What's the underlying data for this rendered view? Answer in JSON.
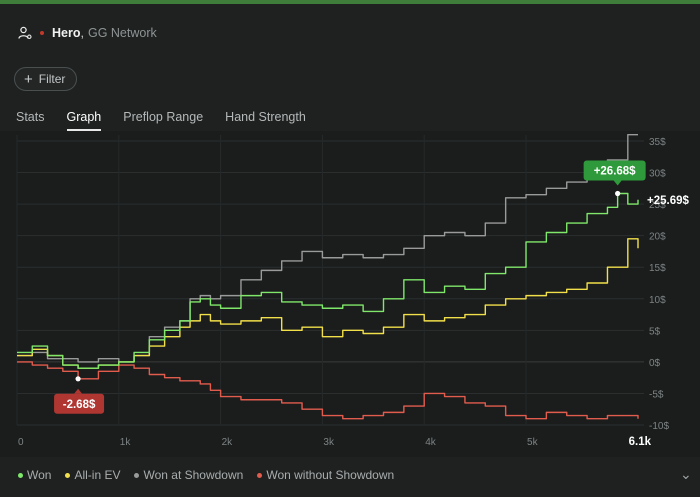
{
  "player": {
    "name": "Hero",
    "network": "GG Network",
    "separator": ","
  },
  "filter": {
    "label": "Filter"
  },
  "tabs": [
    {
      "label": "Stats",
      "active": false
    },
    {
      "label": "Graph",
      "active": true
    },
    {
      "label": "Preflop Range",
      "active": false
    },
    {
      "label": "Hand Strength",
      "active": false
    }
  ],
  "colors": {
    "won": "#7fe86a",
    "allin": "#f2e04a",
    "showdown": "#9a9a9a",
    "nonshowdown": "#e25c4e",
    "tooltip_green": "#2f9a3b",
    "tooltip_red": "#b03632"
  },
  "chart_data": {
    "type": "line",
    "x_ticks": [
      "0",
      "1k",
      "2k",
      "3k",
      "4k",
      "5k"
    ],
    "x_end_label": "6.1k",
    "xlim": [
      0,
      6100
    ],
    "ylim": [
      -10,
      35
    ],
    "y_ticks": [
      "35$",
      "30$",
      "25$",
      "20$",
      "15$",
      "10$",
      "5$",
      "0$",
      "-5$",
      "-10$"
    ],
    "series": [
      {
        "name": "Won",
        "color": "#7fe86a",
        "x": [
          0,
          150,
          300,
          450,
          600,
          800,
          1000,
          1150,
          1300,
          1450,
          1600,
          1700,
          1800,
          1900,
          2000,
          2200,
          2400,
          2600,
          2800,
          3000,
          3200,
          3400,
          3600,
          3800,
          4000,
          4200,
          4400,
          4600,
          4800,
          5000,
          5200,
          5400,
          5600,
          5800,
          5900,
          6000,
          6100
        ],
        "y": [
          1.5,
          2.5,
          1.0,
          -0.5,
          -1.0,
          -0.5,
          0.0,
          1.5,
          3.5,
          5.0,
          6.5,
          9.5,
          10.0,
          9.0,
          8.5,
          10.5,
          11.0,
          9.5,
          9.0,
          8.5,
          9.0,
          8.0,
          10.0,
          13.0,
          11.0,
          12.0,
          11.5,
          14.0,
          15.0,
          19.0,
          20.5,
          22.0,
          23.5,
          24.5,
          26.68,
          25.0,
          25.69
        ]
      },
      {
        "name": "All-in EV",
        "color": "#f2e04a",
        "x": [
          0,
          150,
          300,
          450,
          600,
          800,
          1000,
          1150,
          1300,
          1450,
          1600,
          1700,
          1800,
          1900,
          2000,
          2200,
          2400,
          2600,
          2800,
          3000,
          3200,
          3400,
          3600,
          3800,
          4000,
          4200,
          4400,
          4600,
          4800,
          5000,
          5200,
          5400,
          5600,
          5800,
          6000,
          6100
        ],
        "y": [
          1.0,
          2.0,
          1.0,
          -0.5,
          -1.0,
          -0.5,
          0.0,
          1.0,
          2.5,
          4.0,
          5.5,
          6.5,
          7.5,
          6.5,
          6.0,
          6.5,
          7.0,
          5.0,
          5.5,
          4.0,
          5.0,
          4.5,
          5.5,
          7.5,
          6.5,
          7.0,
          7.5,
          9.0,
          10.0,
          10.5,
          11.0,
          11.5,
          12.5,
          15.0,
          19.5,
          18.0
        ]
      },
      {
        "name": "Won at Showdown",
        "color": "#9a9a9a",
        "x": [
          0,
          150,
          300,
          450,
          600,
          800,
          1000,
          1150,
          1300,
          1450,
          1600,
          1700,
          1800,
          1900,
          2000,
          2200,
          2400,
          2600,
          2800,
          3000,
          3200,
          3400,
          3600,
          3800,
          4000,
          4200,
          4400,
          4600,
          4800,
          5000,
          5200,
          5400,
          5600,
          5800,
          6000,
          6100
        ],
        "y": [
          1.0,
          1.5,
          0.5,
          0.5,
          0.0,
          0.5,
          0.0,
          1.0,
          4.0,
          5.5,
          6.5,
          10.0,
          10.5,
          10.0,
          10.5,
          13.0,
          14.5,
          16.0,
          17.5,
          16.5,
          17.0,
          16.5,
          17.0,
          18.0,
          20.0,
          20.5,
          20.0,
          22.0,
          26.0,
          26.5,
          27.5,
          28.5,
          29.0,
          32.0,
          36.0,
          36.0
        ]
      },
      {
        "name": "Won without Showdown",
        "color": "#e25c4e",
        "x": [
          0,
          150,
          300,
          450,
          600,
          800,
          1000,
          1150,
          1300,
          1450,
          1600,
          1700,
          1800,
          1900,
          2000,
          2200,
          2400,
          2600,
          2800,
          3000,
          3200,
          3400,
          3600,
          3800,
          4000,
          4200,
          4400,
          4600,
          4800,
          5000,
          5200,
          5400,
          5600,
          5800,
          6000,
          6100
        ],
        "y": [
          0.0,
          -0.5,
          -1.0,
          -1.5,
          -2.68,
          -1.5,
          -0.5,
          -1.0,
          -2.0,
          -2.5,
          -3.0,
          -3.0,
          -3.5,
          -4.5,
          -5.5,
          -6.0,
          -6.0,
          -6.5,
          -7.5,
          -8.5,
          -9.0,
          -8.5,
          -8.0,
          -7.0,
          -5.0,
          -5.5,
          -6.5,
          -7.0,
          -8.5,
          -9.0,
          -8.0,
          -8.5,
          -9.0,
          -8.5,
          -8.5,
          -9.0
        ]
      }
    ],
    "annotations": [
      {
        "series": "Won",
        "x": 5900,
        "y": 26.68,
        "label": "+26.68$",
        "style": "green-box"
      },
      {
        "series": "Won",
        "x": 6100,
        "y": 25.69,
        "label": "+25.69$",
        "style": "end-label"
      },
      {
        "series": "Won without Showdown",
        "x": 600,
        "y": -2.68,
        "label": "-2.68$",
        "style": "red-box"
      }
    ]
  },
  "legend": [
    {
      "label": "Won",
      "color": "#7fe86a"
    },
    {
      "label": "All-in EV",
      "color": "#f2e04a"
    },
    {
      "label": "Won at Showdown",
      "color": "#9a9a9a"
    },
    {
      "label": "Won without Showdown",
      "color": "#e25c4e"
    }
  ]
}
